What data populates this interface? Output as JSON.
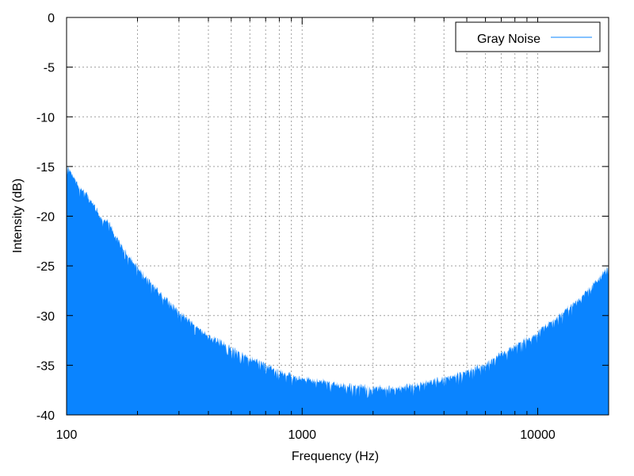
{
  "chart_data": {
    "type": "area",
    "xlabel": "Frequency (Hz)",
    "ylabel": "Intensity (dB)",
    "x_scale": "log",
    "xlim": [
      100,
      20000
    ],
    "ylim": [
      -40,
      0
    ],
    "xticks": [
      100,
      1000,
      10000
    ],
    "yticks": [
      0,
      -5,
      -10,
      -15,
      -20,
      -25,
      -30,
      -35,
      -40
    ],
    "grid": true,
    "legend_position": "top-right",
    "series": [
      {
        "name": "Gray Noise",
        "color": "#0a84ff",
        "x": [
          100,
          110,
          120,
          130,
          140,
          150,
          160,
          170,
          180,
          200,
          220,
          250,
          300,
          350,
          400,
          450,
          500,
          600,
          700,
          800,
          900,
          1000,
          1200,
          1500,
          2000,
          2500,
          3000,
          4000,
          5000,
          6000,
          7000,
          8000,
          10000,
          12000,
          15000,
          18000,
          20000
        ],
        "values": [
          -14.6,
          -16.3,
          -17.4,
          -18.6,
          -19.9,
          -20.3,
          -21.6,
          -22.6,
          -23.5,
          -24.9,
          -26.1,
          -27.5,
          -29.3,
          -30.7,
          -31.7,
          -32.4,
          -33.1,
          -34.0,
          -34.7,
          -35.4,
          -35.8,
          -36.1,
          -36.3,
          -36.8,
          -37.0,
          -37.0,
          -36.7,
          -36.1,
          -35.4,
          -34.6,
          -33.6,
          -32.8,
          -31.5,
          -30.0,
          -28.1,
          -26.2,
          -24.7
        ]
      }
    ]
  }
}
